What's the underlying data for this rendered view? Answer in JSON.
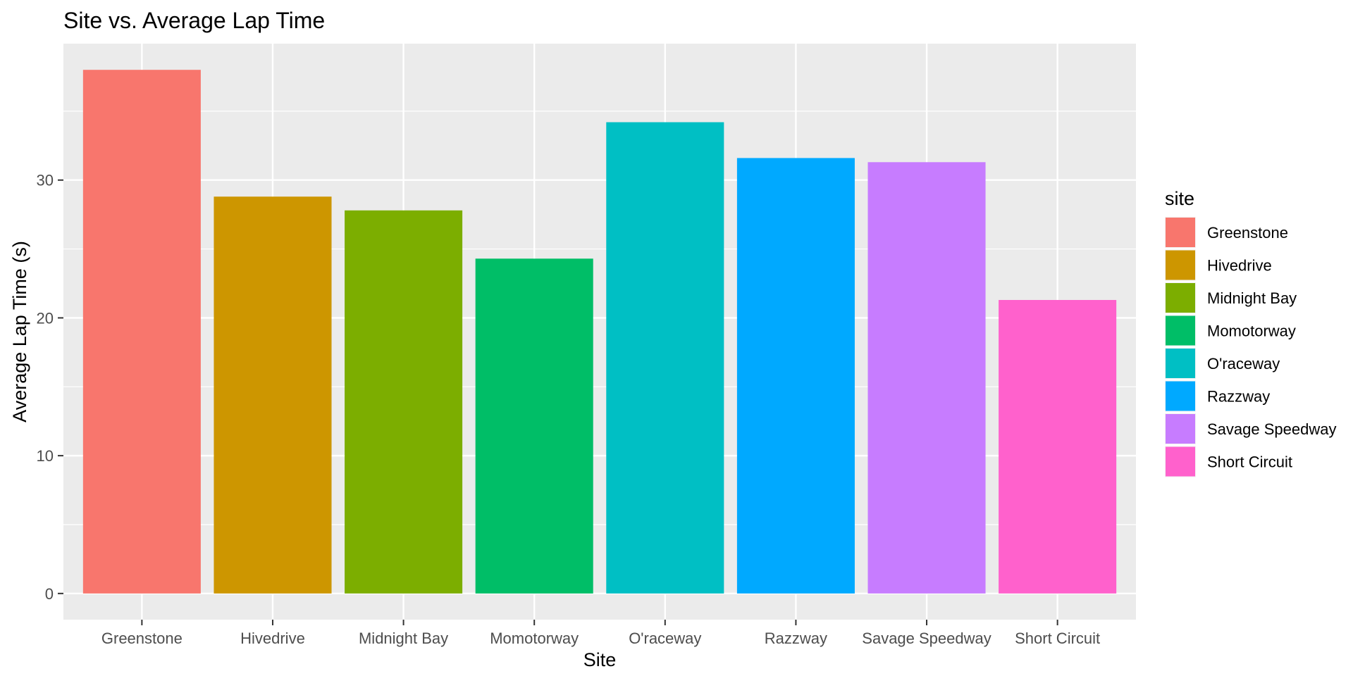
{
  "chart_data": {
    "type": "bar",
    "title": "Site vs. Average Lap Time",
    "xlabel": "Site",
    "ylabel": "Average Lap Time (s)",
    "categories": [
      "Greenstone",
      "Hivedrive",
      "Midnight Bay",
      "Momotorway",
      "O'raceway",
      "Razzway",
      "Savage Speedway",
      "Short Circuit"
    ],
    "values": [
      38.0,
      28.8,
      27.8,
      24.3,
      34.2,
      31.6,
      31.3,
      21.3
    ],
    "colors": [
      "#F8766D",
      "#CD9600",
      "#7CAE00",
      "#00BE67",
      "#00BFC4",
      "#00A9FF",
      "#C77CFF",
      "#FF61CC"
    ],
    "ylim": [
      -1.9,
      39.9
    ],
    "yticks": [
      0,
      10,
      20,
      30
    ],
    "grid": true,
    "panel_background": "#EBEBEB",
    "legend": {
      "title": "site",
      "position": "right",
      "entries": [
        "Greenstone",
        "Hivedrive",
        "Midnight Bay",
        "Momotorway",
        "O'raceway",
        "Razzway",
        "Savage Speedway",
        "Short Circuit"
      ]
    }
  }
}
